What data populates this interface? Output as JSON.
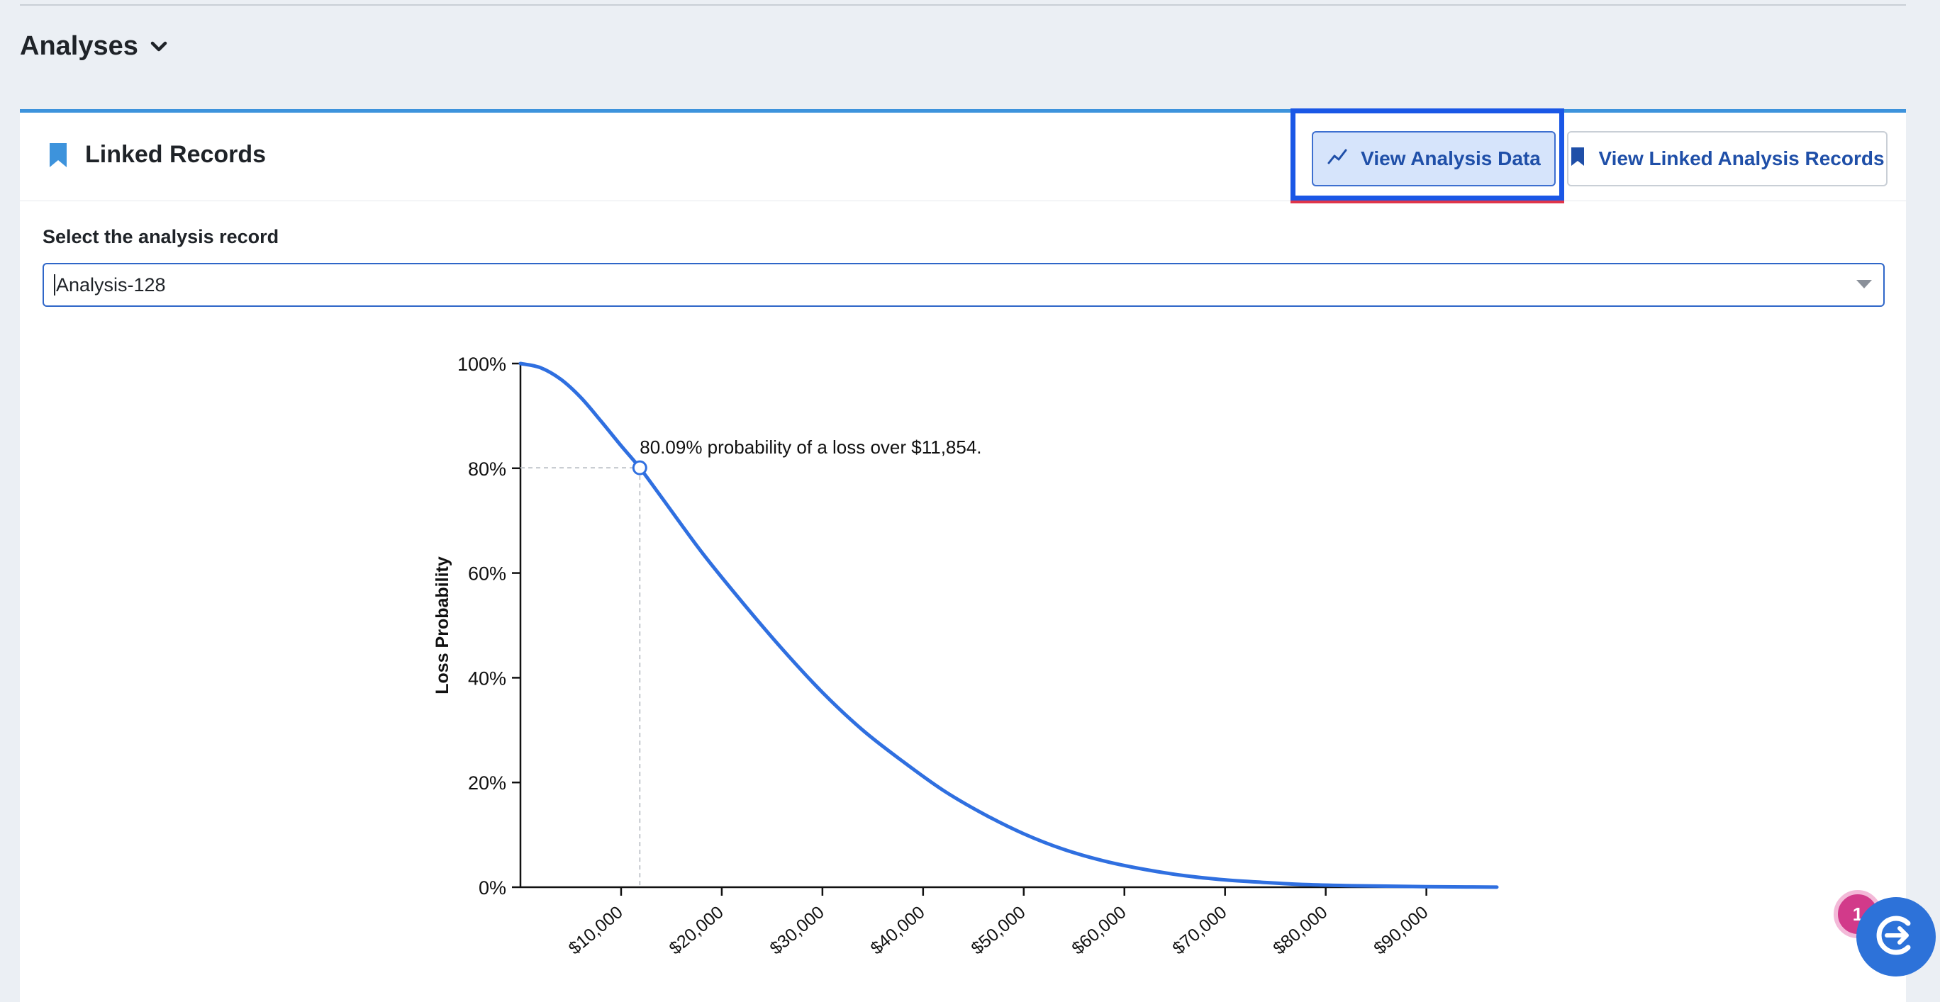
{
  "header": {
    "analyses_title": "Analyses"
  },
  "card": {
    "title": "Linked Records",
    "buttons": {
      "view_analysis_data": "View Analysis Data",
      "view_linked_records": "View Linked Analysis Records"
    }
  },
  "select": {
    "label": "Select the analysis record",
    "value": "Analysis-128"
  },
  "chart_data": {
    "type": "line",
    "title": "",
    "xlabel": "",
    "ylabel": "Loss Probability",
    "xlim": [
      0,
      97000
    ],
    "ylim": [
      0,
      100
    ],
    "x_tick_labels": [
      "$10,000",
      "$20,000",
      "$30,000",
      "$40,000",
      "$50,000",
      "$60,000",
      "$70,000",
      "$80,000",
      "$90,000"
    ],
    "x_ticks": [
      10000,
      20000,
      30000,
      40000,
      50000,
      60000,
      70000,
      80000,
      90000
    ],
    "y_tick_labels": [
      "0%",
      "20%",
      "40%",
      "60%",
      "80%",
      "100%"
    ],
    "y_ticks": [
      0,
      20,
      40,
      60,
      80,
      100
    ],
    "series": [
      {
        "color": "#2f6fe0",
        "x": [
          0,
          2000,
          4000,
          6000,
          8000,
          10000,
          11854,
          14000,
          18000,
          22000,
          26000,
          30000,
          34000,
          38000,
          42000,
          46000,
          50000,
          54000,
          58000,
          62000,
          66000,
          70000,
          74000,
          78000,
          82000,
          86000,
          90000,
          94000,
          97000
        ],
        "y": [
          100,
          99.2,
          97.0,
          93.5,
          89.0,
          84.3,
          80.09,
          74.5,
          64.0,
          54.5,
          45.5,
          37.2,
          30.0,
          24.0,
          18.5,
          14.0,
          10.2,
          7.2,
          5.0,
          3.4,
          2.2,
          1.4,
          0.9,
          0.5,
          0.3,
          0.2,
          0.1,
          0.05,
          0.02
        ]
      }
    ],
    "annotation": {
      "text": "80.09% probability of a loss over $11,854.",
      "x": 11854,
      "y": 80.09
    },
    "grid": false
  },
  "fab": {
    "badge_count": "1",
    "icon": "chat-assistant-icon"
  },
  "colors": {
    "accent": "#3d93dc",
    "button_text": "#1f4fa8",
    "active_button_bg": "#d6e4fb",
    "focus_ring": "#1a57e6",
    "line": "#2f6fe0",
    "fab": "#2d72d9",
    "badge": "#d23a8a"
  }
}
